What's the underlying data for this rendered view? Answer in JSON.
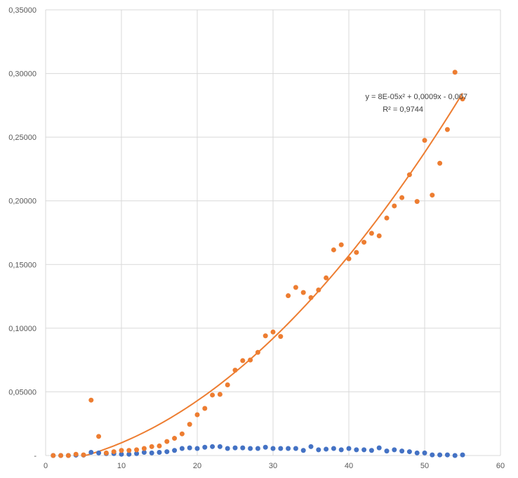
{
  "chart_data": {
    "type": "scatter",
    "title": "",
    "xlabel": "",
    "ylabel": "",
    "xlim": [
      0,
      60
    ],
    "ylim": [
      0,
      0.35
    ],
    "x_ticks": [
      0,
      10,
      20,
      30,
      40,
      50,
      60
    ],
    "y_ticks": [
      0,
      0.05,
      0.1,
      0.15,
      0.2,
      0.25,
      0.3,
      0.35
    ],
    "x_tick_labels": [
      "0",
      "10",
      "20",
      "30",
      "40",
      "50",
      "60"
    ],
    "y_tick_labels": [
      "-",
      "0,05000",
      "0,10000",
      "0,15000",
      "0,20000",
      "0,25000",
      "0,30000",
      "0,35000"
    ],
    "grid": true,
    "legend": "none",
    "colors": {
      "series_blue": "#4472c4",
      "series_orange": "#ed7d31",
      "gridline": "#d9d9d9",
      "axis_text": "#595959"
    },
    "series": [
      {
        "color": "#4472c4",
        "x": [
          1,
          2,
          3,
          4,
          5,
          6,
          7,
          8,
          9,
          10,
          11,
          12,
          13,
          14,
          15,
          16,
          17,
          18,
          19,
          20,
          21,
          22,
          23,
          24,
          25,
          26,
          27,
          28,
          29,
          30,
          31,
          32,
          33,
          34,
          35,
          36,
          37,
          38,
          39,
          40,
          41,
          42,
          43,
          44,
          45,
          46,
          47,
          48,
          49,
          50,
          51,
          52,
          53,
          54,
          55
        ],
        "y": [
          0.0,
          0.0,
          0.0,
          0.0003,
          0.0003,
          0.0025,
          0.002,
          0.0015,
          0.0015,
          0.001,
          0.001,
          0.0015,
          0.0025,
          0.002,
          0.0025,
          0.003,
          0.004,
          0.0055,
          0.006,
          0.0055,
          0.0065,
          0.007,
          0.007,
          0.0055,
          0.006,
          0.006,
          0.0055,
          0.0055,
          0.0065,
          0.0055,
          0.0055,
          0.0055,
          0.0055,
          0.004,
          0.007,
          0.0045,
          0.005,
          0.0055,
          0.0045,
          0.0055,
          0.0045,
          0.0045,
          0.004,
          0.006,
          0.0035,
          0.0045,
          0.0035,
          0.003,
          0.002,
          0.002,
          0.0005,
          0.0005,
          0.0005,
          0.0,
          0.0005
        ]
      },
      {
        "color": "#ed7d31",
        "x": [
          1,
          2,
          3,
          4,
          5,
          6,
          7,
          8,
          9,
          10,
          11,
          12,
          13,
          14,
          15,
          16,
          17,
          18,
          19,
          20,
          21,
          22,
          23,
          24,
          25,
          26,
          27,
          28,
          29,
          30,
          31,
          32,
          33,
          34,
          35,
          36,
          37,
          38,
          39,
          40,
          41,
          42,
          43,
          44,
          45,
          46,
          47,
          48,
          49,
          50,
          51,
          52,
          53,
          54,
          55
        ],
        "y": [
          0.0,
          0.0,
          0.0,
          0.001,
          0.0005,
          0.0435,
          0.015,
          0.002,
          0.003,
          0.004,
          0.004,
          0.0045,
          0.0055,
          0.007,
          0.0075,
          0.011,
          0.0135,
          0.017,
          0.0245,
          0.032,
          0.037,
          0.0475,
          0.048,
          0.0555,
          0.067,
          0.0745,
          0.075,
          0.081,
          0.094,
          0.097,
          0.0935,
          0.1255,
          0.132,
          0.128,
          0.124,
          0.13,
          0.1395,
          0.1615,
          0.1655,
          0.1545,
          0.1595,
          0.1675,
          0.1745,
          0.1725,
          0.1865,
          0.196,
          0.2025,
          0.2205,
          0.1995,
          0.2475,
          0.2045,
          0.2295,
          0.256,
          0.301,
          0.28
        ]
      }
    ],
    "trendline": {
      "type": "polynomial-2",
      "series_index": 1,
      "x_range": [
        5,
        55
      ],
      "coefficients": {
        "a": 8e-05,
        "b": 0.0009,
        "c": -0.007
      },
      "color": "#ed7d31",
      "equation_label": "y = 8E-05x² + 0,0009x - 0,007",
      "r2_label": "R² = 0,9744"
    }
  }
}
